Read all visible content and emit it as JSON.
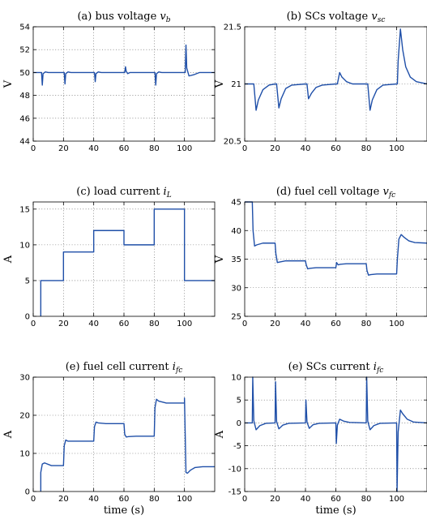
{
  "page": {
    "background": "#ffffff",
    "line_color": "#1f4fa8"
  },
  "chart_data": [
    {
      "type": "line",
      "title": "(a) bus voltage ",
      "title_var": "v",
      "title_sub": "b",
      "ylabel": "V",
      "xlabel": "",
      "xlim": [
        0,
        120
      ],
      "ylim": [
        44,
        54
      ],
      "xticks": [
        0,
        20,
        40,
        60,
        80,
        100
      ],
      "yticks": [
        44,
        46,
        48,
        50,
        52,
        54
      ],
      "grid": true,
      "series": [
        {
          "x": [
            0,
            5.5,
            6,
            6.5,
            8,
            10,
            20,
            20.5,
            21,
            21.5,
            23,
            25,
            40,
            40.5,
            41,
            41.5,
            43,
            45,
            60,
            60.5,
            61,
            61.5,
            62.5,
            64,
            80,
            80.5,
            81,
            81.5,
            83,
            85,
            100,
            100.5,
            101,
            101.5,
            103,
            106,
            110,
            120
          ],
          "y": [
            50,
            50,
            48.9,
            49.9,
            50.05,
            50.0,
            50,
            50,
            49.0,
            49.9,
            50.05,
            50.0,
            50,
            50,
            49.2,
            49.9,
            50.05,
            50.0,
            50,
            50,
            50.5,
            50.1,
            49.9,
            50.0,
            50,
            50,
            48.9,
            49.9,
            50.05,
            50.0,
            50,
            50,
            52.4,
            50.4,
            49.7,
            49.8,
            50.0,
            50.0
          ]
        }
      ]
    },
    {
      "type": "line",
      "title": "(b) SCs voltage ",
      "title_var": "v",
      "title_sub": "sc",
      "ylabel": "V",
      "xlabel": "",
      "xlim": [
        0,
        120
      ],
      "ylim": [
        20.5,
        21.5
      ],
      "xticks": [
        0,
        20,
        40,
        60,
        80,
        100
      ],
      "yticks": [
        20.5,
        21,
        21.5
      ],
      "grid": true,
      "series": [
        {
          "x": [
            0,
            5.5,
            6,
            7.5,
            9,
            12,
            16,
            20,
            20.5,
            21,
            22.5,
            24,
            27,
            31,
            40,
            40.5,
            41,
            42,
            44,
            47,
            51,
            60,
            60.5,
            61,
            62.5,
            64,
            67,
            71,
            80,
            80.5,
            81,
            82.5,
            84,
            87,
            91,
            100,
            100.5,
            101,
            102.5,
            104,
            106,
            109,
            113,
            120
          ],
          "y": [
            21,
            21,
            21,
            20.77,
            20.86,
            20.95,
            20.99,
            21,
            21,
            21,
            20.79,
            20.87,
            20.96,
            20.99,
            21,
            21,
            21,
            20.87,
            20.92,
            20.97,
            20.99,
            21,
            21,
            21,
            21.1,
            21.06,
            21.02,
            21.0,
            21,
            21,
            21,
            20.77,
            20.86,
            20.95,
            20.99,
            21,
            21,
            21.2,
            21.48,
            21.3,
            21.15,
            21.06,
            21.02,
            21.0
          ]
        }
      ]
    },
    {
      "type": "line",
      "title": "(c) load current ",
      "title_var": "i",
      "title_sub": "L",
      "ylabel": "A",
      "xlabel": "",
      "xlim": [
        0,
        120
      ],
      "ylim": [
        0,
        16
      ],
      "xticks": [
        0,
        20,
        40,
        60,
        80,
        100
      ],
      "yticks": [
        0,
        5,
        10,
        15
      ],
      "grid": true,
      "series": [
        {
          "x": [
            5,
            5,
            20,
            20,
            40,
            40,
            60,
            60,
            80,
            80,
            100,
            100,
            120
          ],
          "y": [
            0,
            5,
            5,
            9,
            9,
            12,
            12,
            10,
            10,
            15,
            15,
            5,
            5
          ]
        }
      ]
    },
    {
      "type": "line",
      "title": "(d) fuel cell voltage ",
      "title_var": "v",
      "title_sub": "fc",
      "ylabel": "V",
      "xlabel": "",
      "xlim": [
        0,
        120
      ],
      "ylim": [
        25,
        45
      ],
      "xticks": [
        0,
        20,
        40,
        60,
        80,
        100
      ],
      "yticks": [
        25,
        30,
        35,
        40,
        45
      ],
      "grid": true,
      "series": [
        {
          "x": [
            0,
            5,
            5.5,
            6.5,
            8,
            12,
            20,
            20.5,
            21.5,
            23,
            27,
            40,
            40.5,
            41.5,
            43,
            47,
            60,
            60.5,
            61.5,
            63,
            67,
            80,
            80.5,
            81.5,
            83,
            87,
            100,
            100.5,
            101.5,
            103,
            105,
            108,
            112,
            120
          ],
          "y": [
            45,
            45,
            40,
            37.3,
            37.5,
            37.8,
            37.8,
            36,
            34.4,
            34.5,
            34.7,
            34.7,
            34,
            33.3,
            33.4,
            33.5,
            33.5,
            34.4,
            34.0,
            34.1,
            34.2,
            34.2,
            33,
            32.2,
            32.3,
            32.4,
            32.4,
            35,
            38.5,
            39.3,
            38.8,
            38.2,
            37.9,
            37.8
          ]
        }
      ]
    },
    {
      "type": "line",
      "title": "(e) fuel cell current ",
      "title_var": "i",
      "title_sub": "fc",
      "ylabel": "A",
      "xlabel": "time (s)",
      "xlim": [
        0,
        120
      ],
      "ylim": [
        0,
        30
      ],
      "xticks": [
        0,
        20,
        40,
        60,
        80,
        100
      ],
      "yticks": [
        0,
        10,
        20,
        30
      ],
      "grid": true,
      "series": [
        {
          "x": [
            5,
            5,
            6,
            7.5,
            12,
            20,
            20.5,
            21.5,
            23,
            28,
            40,
            40.5,
            41.5,
            43,
            48,
            60,
            60.5,
            61.5,
            63,
            68,
            80,
            80.5,
            81.5,
            83,
            88,
            100,
            100,
            101,
            102,
            104,
            107,
            112,
            120
          ],
          "y": [
            0,
            5,
            7.2,
            7.5,
            6.8,
            6.8,
            12,
            13.5,
            13.2,
            13.2,
            13.2,
            17,
            18.2,
            18.0,
            17.8,
            17.8,
            15,
            14.3,
            14.4,
            14.5,
            14.5,
            22,
            24.2,
            23.7,
            23.2,
            23.2,
            24.5,
            5,
            4.8,
            5.6,
            6.3,
            6.5,
            6.5
          ]
        }
      ]
    },
    {
      "type": "line",
      "title": "(e) SCs current ",
      "title_var": "i",
      "title_sub": "fc",
      "ylabel": "A",
      "xlabel": "time (s)",
      "xlim": [
        0,
        120
      ],
      "ylim": [
        -15,
        10
      ],
      "xticks": [
        0,
        20,
        40,
        60,
        80,
        100
      ],
      "yticks": [
        -15,
        -10,
        -5,
        0,
        5,
        10
      ],
      "grid": true,
      "series": [
        {
          "x": [
            0,
            5,
            5.3,
            6,
            7.5,
            10,
            14,
            20,
            20.3,
            21,
            22.5,
            25,
            29,
            40,
            40.3,
            41,
            42.5,
            45,
            49,
            60,
            60.3,
            61,
            62.5,
            65,
            69,
            80,
            80.3,
            81,
            82.5,
            85,
            89,
            100,
            100.3,
            101,
            102.5,
            104,
            107,
            111,
            120
          ],
          "y": [
            0,
            0,
            10,
            0.5,
            -1.5,
            -0.6,
            -0.1,
            0,
            9,
            0.3,
            -1.3,
            -0.5,
            -0.1,
            0,
            5,
            0.2,
            -1.2,
            -0.4,
            -0.1,
            0,
            -4.5,
            -0.5,
            0.8,
            0.4,
            0.1,
            0,
            10,
            0.4,
            -1.5,
            -0.6,
            -0.1,
            0,
            -15,
            -2,
            2.8,
            2.0,
            0.8,
            0.2,
            0
          ]
        }
      ]
    }
  ]
}
